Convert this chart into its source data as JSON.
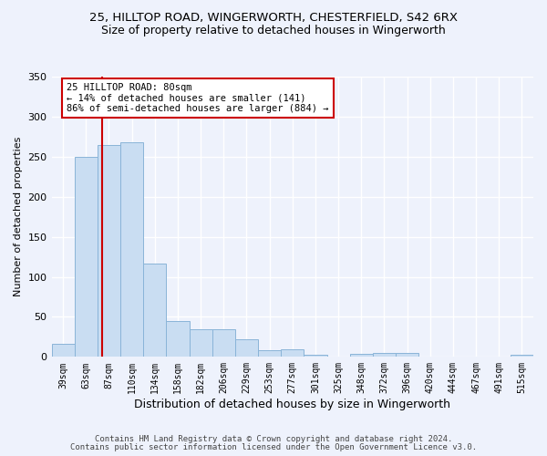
{
  "title1": "25, HILLTOP ROAD, WINGERWORTH, CHESTERFIELD, S42 6RX",
  "title2": "Size of property relative to detached houses in Wingerworth",
  "xlabel": "Distribution of detached houses by size in Wingerworth",
  "ylabel": "Number of detached properties",
  "bin_labels": [
    "39sqm",
    "63sqm",
    "87sqm",
    "110sqm",
    "134sqm",
    "158sqm",
    "182sqm",
    "206sqm",
    "229sqm",
    "253sqm",
    "277sqm",
    "301sqm",
    "325sqm",
    "348sqm",
    "372sqm",
    "396sqm",
    "420sqm",
    "444sqm",
    "467sqm",
    "491sqm",
    "515sqm"
  ],
  "bar_values": [
    16,
    250,
    265,
    268,
    116,
    45,
    35,
    35,
    22,
    8,
    9,
    3,
    0,
    4,
    5,
    5,
    0,
    0,
    0,
    0,
    3
  ],
  "bar_color": "#c9ddf2",
  "bar_edge_color": "#8ab4d8",
  "subject_line_color": "#cc0000",
  "annotation_text": "25 HILLTOP ROAD: 80sqm\n← 14% of detached houses are smaller (141)\n86% of semi-detached houses are larger (884) →",
  "annotation_box_color": "#cc0000",
  "ylim": [
    0,
    350
  ],
  "yticks": [
    0,
    50,
    100,
    150,
    200,
    250,
    300,
    350
  ],
  "footer1": "Contains HM Land Registry data © Crown copyright and database right 2024.",
  "footer2": "Contains public sector information licensed under the Open Government Licence v3.0.",
  "bg_color": "#eef2fc",
  "grid_color": "#ffffff",
  "title1_fontsize": 9.5,
  "title2_fontsize": 9
}
